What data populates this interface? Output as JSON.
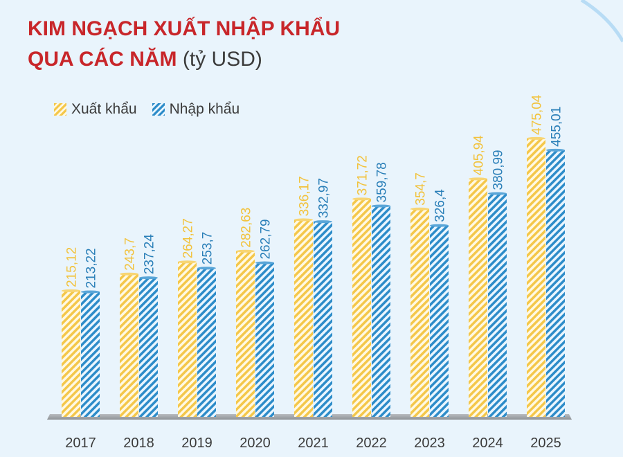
{
  "title_line1": "KIM NGẠCH XUẤT NHẬP KHẨU",
  "title_line2": "QUA CÁC NĂM",
  "title_unit": "(tỷ USD)",
  "colors": {
    "export": "#f4c74a",
    "export_label": "#f2c23c",
    "import": "#2d8cc9",
    "import_label": "#2a7fb8",
    "title": "#c8262a",
    "background": "#e9f4fc"
  },
  "chart_data": {
    "type": "bar",
    "categories": [
      "2017",
      "2018",
      "2019",
      "2020",
      "2021",
      "2022",
      "2023",
      "2024",
      "2025"
    ],
    "series": [
      {
        "name": "Xuất khẩu",
        "values": [
          215.12,
          243.7,
          264.27,
          282.63,
          336.17,
          371.72,
          354.7,
          405.94,
          475.04
        ],
        "labels": [
          "215,12",
          "243,7",
          "264,27",
          "282,63",
          "336,17",
          "371,72",
          "354,7",
          "405,94",
          "475,04"
        ]
      },
      {
        "name": "Nhập khẩu",
        "values": [
          213.22,
          237.24,
          253.7,
          262.79,
          332.97,
          359.78,
          326.4,
          380.99,
          455.01
        ],
        "labels": [
          "213,22",
          "237,24",
          "253,7",
          "262,79",
          "332,97",
          "359,78",
          "326,4",
          "380,99",
          "455,01"
        ]
      }
    ],
    "legend_position": "top-left",
    "grid": false
  }
}
